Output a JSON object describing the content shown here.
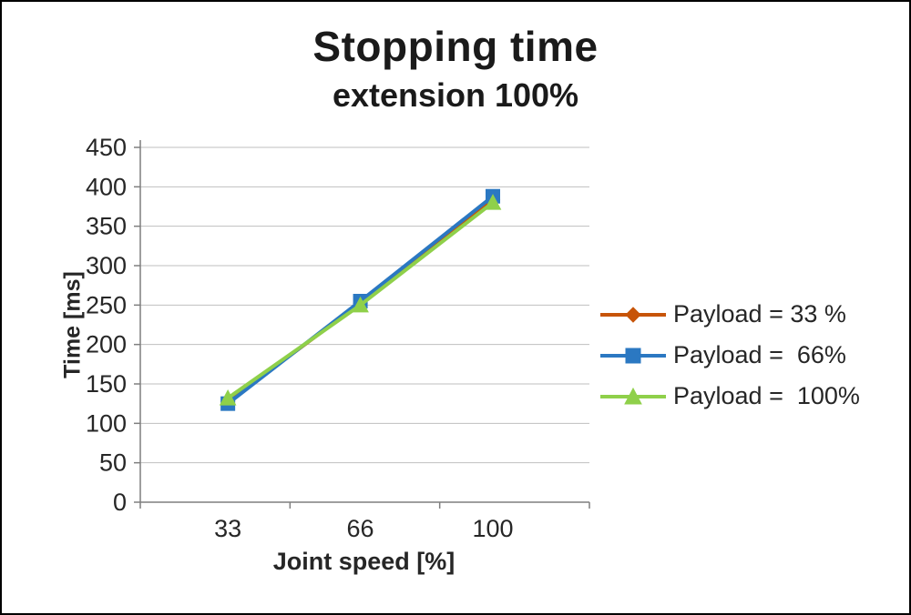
{
  "title": "Stopping time",
  "subtitle": "extension 100%",
  "chart_data": {
    "type": "line",
    "x": [
      33,
      66,
      100
    ],
    "categories": [
      "33",
      "66",
      "100"
    ],
    "series": [
      {
        "name": "Payload = 33 %",
        "color": "#C75408",
        "marker": "diamond",
        "values": [
          128,
          252,
          384
        ]
      },
      {
        "name": "Payload =  66%",
        "color": "#2B78C2",
        "marker": "square",
        "values": [
          125,
          255,
          388
        ]
      },
      {
        "name": "Payload =  100%",
        "color": "#8FD04A",
        "marker": "triangle",
        "values": [
          132,
          250,
          380
        ]
      }
    ],
    "xlabel": "Joint speed [%]",
    "ylabel": "Time [ms]",
    "ylim": [
      0,
      450
    ],
    "ytick_step": 50,
    "grid": true,
    "legend_position": "right"
  }
}
